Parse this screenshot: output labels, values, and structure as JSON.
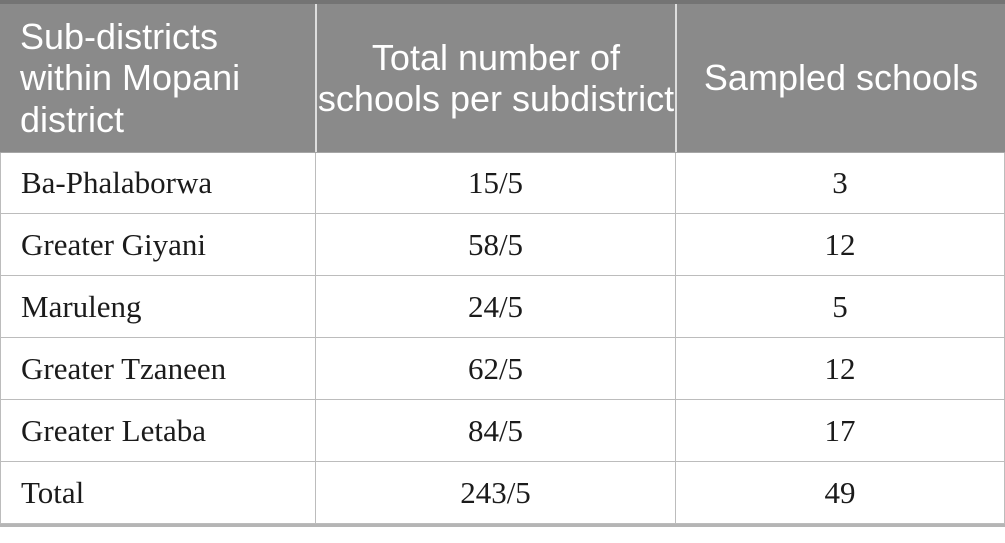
{
  "table": {
    "headers": [
      "Sub-districts within Mopani district",
      "Total number of schools per subdistrict",
      "Sampled schools"
    ],
    "rows": [
      {
        "cells": [
          "Ba-Phalaborwa",
          "15/5",
          "3"
        ]
      },
      {
        "cells": [
          "Greater Giyani",
          "58/5",
          "12"
        ]
      },
      {
        "cells": [
          "Maruleng",
          "24/5",
          "5"
        ]
      },
      {
        "cells": [
          "Greater Tzaneen",
          "62/5",
          "12"
        ]
      },
      {
        "cells": [
          "Greater Letaba",
          "84/5",
          "17"
        ]
      },
      {
        "cells": [
          "Total",
          "243/5",
          "49"
        ]
      }
    ],
    "colors": {
      "header_bg": "#8a8a8a",
      "header_text": "#ffffff",
      "top_rule": "#747474",
      "bottom_rule": "#b5b5b5",
      "cell_border": "#bcbcbc",
      "body_text": "#1b1b1b"
    }
  }
}
